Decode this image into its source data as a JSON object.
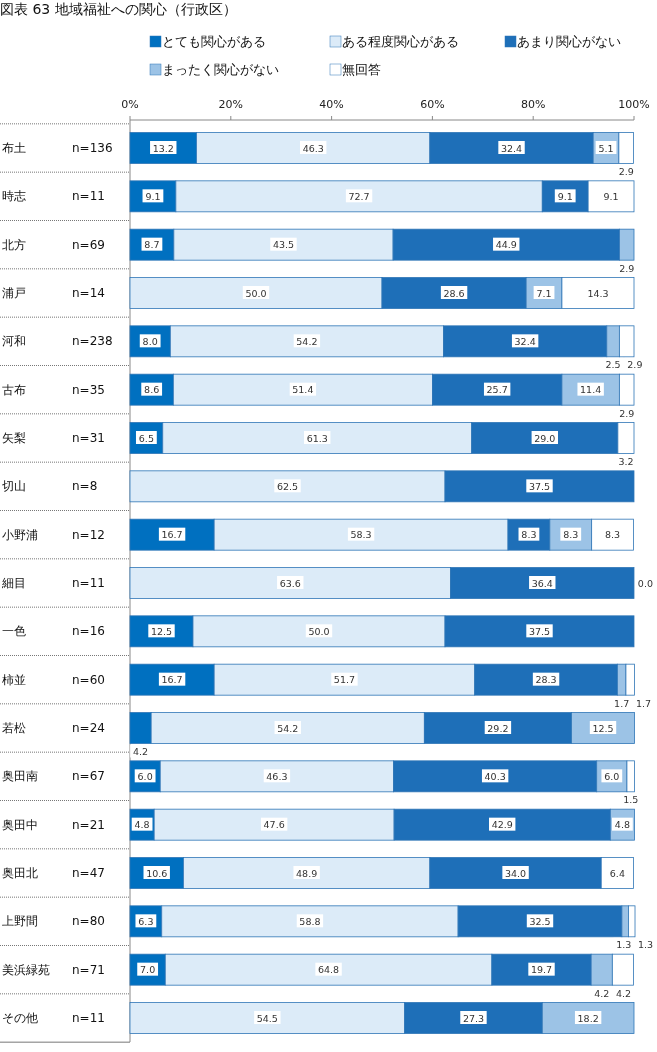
{
  "chart_data": {
    "type": "bar",
    "orientation": "horizontal",
    "stacked": true,
    "title": "図表 63 地域福祉への関心（行政区）",
    "categories": [
      "布土 n=136",
      "時志 n=11",
      "北方 n=69",
      "浦戸 n=14",
      "河和 n=238",
      "古布 n=35",
      "矢梨 n=31",
      "切山 n=8",
      "小野浦 n=12",
      "細目 n=11",
      "一色 n=16",
      "柿並 n=60",
      "若松 n=24",
      "奥田南 n=67",
      "奥田中 n=21",
      "奥田北 n=47",
      "上野間 n=80",
      "美浜緑苑 n=71",
      "その他 n=11"
    ],
    "series": [
      {
        "name": "とても関心がある",
        "color": "#0070c0",
        "values": [
          13.2,
          9.1,
          8.7,
          0,
          8.0,
          8.6,
          6.5,
          0,
          16.7,
          0,
          12.5,
          16.7,
          4.2,
          6.0,
          4.8,
          10.6,
          6.3,
          7.0,
          0
        ],
        "value_labels": [
          "13.2",
          "9.1",
          "8.7",
          null,
          "8.0",
          "8.6",
          "6.5",
          null,
          "16.7",
          null,
          "12.5",
          "16.7",
          "4.2",
          "6.0",
          "4.8",
          "10.6",
          "6.3",
          "7.0",
          null
        ]
      },
      {
        "name": "ある程度関心がある",
        "color": "#dcebf8",
        "values": [
          46.3,
          72.7,
          43.5,
          50.0,
          54.2,
          51.4,
          61.3,
          62.5,
          58.3,
          63.6,
          50.0,
          51.7,
          54.2,
          46.3,
          47.6,
          48.9,
          58.8,
          64.8,
          54.5
        ],
        "value_labels": [
          "46.3",
          "72.7",
          "43.5",
          "50.0",
          "54.2",
          "51.4",
          "61.3",
          "62.5",
          "58.3",
          "63.6",
          "50.0",
          "51.7",
          "54.2",
          "46.3",
          "47.6",
          "48.9",
          "58.8",
          "64.8",
          "54.5"
        ]
      },
      {
        "name": "あまり関心がない",
        "color": "#1e6fb8",
        "values": [
          32.4,
          9.1,
          44.9,
          28.6,
          32.4,
          25.7,
          29.0,
          37.5,
          8.3,
          36.4,
          37.5,
          28.3,
          29.2,
          40.3,
          42.9,
          34.0,
          32.5,
          19.7,
          27.3
        ],
        "value_labels": [
          "32.4",
          "9.1",
          "44.9",
          "28.6",
          "32.4",
          "25.7",
          "29.0",
          "37.5",
          "8.3",
          "36.4",
          "37.5",
          "28.3",
          "29.2",
          "40.3",
          "42.9",
          "34.0",
          "32.5",
          "19.7",
          "27.3"
        ]
      },
      {
        "name": "まったく関心がない",
        "color": "#9cc3e6",
        "values": [
          5.1,
          0,
          2.9,
          7.1,
          2.5,
          11.4,
          0,
          0,
          8.3,
          0,
          0,
          1.7,
          12.5,
          6.0,
          4.8,
          0,
          1.3,
          4.2,
          18.2
        ],
        "value_labels": [
          "5.1",
          null,
          "2.9",
          "7.1",
          "2.5",
          "11.4",
          null,
          null,
          "8.3",
          null,
          null,
          "1.7",
          "12.5",
          "6.0",
          "4.8",
          null,
          "1.3",
          "4.2",
          "18.2"
        ]
      },
      {
        "name": "無回答",
        "color": "#ffffff",
        "values": [
          2.9,
          9.1,
          0,
          14.3,
          2.9,
          2.9,
          3.2,
          0,
          8.3,
          0.0,
          0,
          1.7,
          0,
          1.5,
          0,
          6.4,
          1.3,
          4.2,
          0
        ],
        "value_labels": [
          "2.9",
          "9.1",
          null,
          "14.3",
          "2.9",
          "2.9",
          "3.2",
          null,
          "8.3",
          "0.0",
          null,
          "1.7",
          null,
          "1.5",
          null,
          "6.4",
          "1.3",
          "4.2",
          null
        ]
      }
    ],
    "xlim": [
      0,
      100
    ],
    "xticks": [
      {
        "value": 0,
        "label": "0%"
      },
      {
        "value": 20,
        "label": "20%"
      },
      {
        "value": 40,
        "label": "40%"
      },
      {
        "value": 60,
        "label": "60%"
      },
      {
        "value": 80,
        "label": "80%"
      },
      {
        "value": 100,
        "label": "100%"
      }
    ],
    "legend": "top",
    "grid": false
  }
}
